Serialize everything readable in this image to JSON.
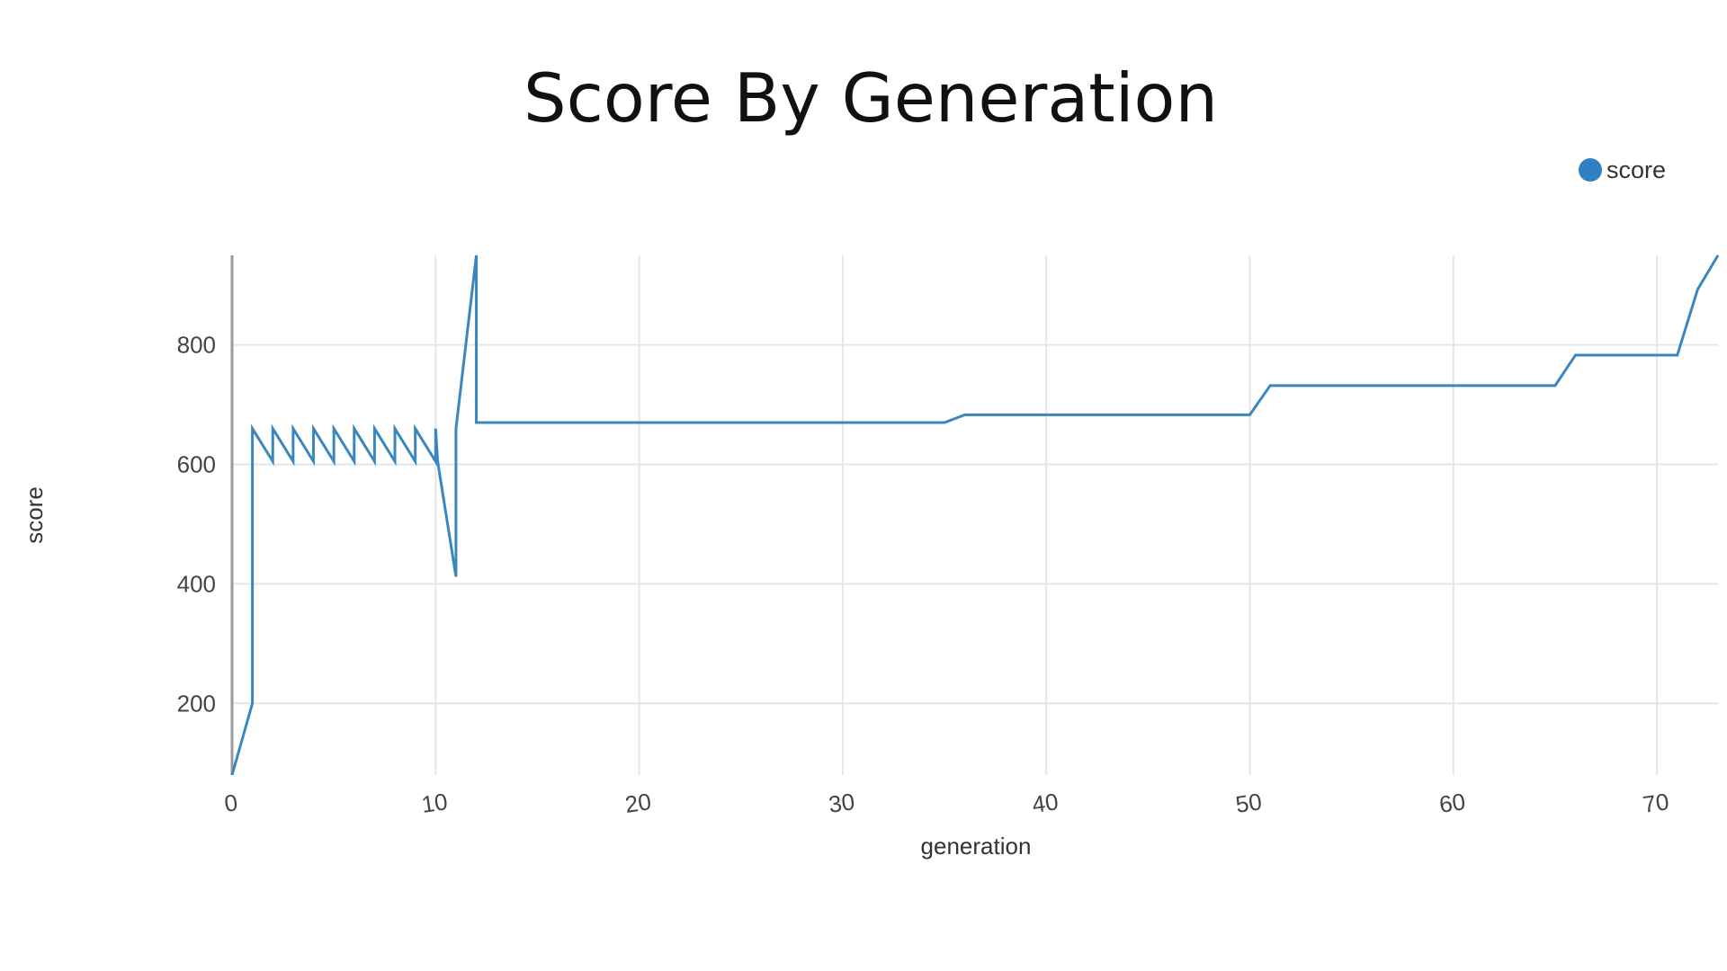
{
  "chart_data": {
    "type": "line",
    "title": "Score By Generation",
    "xlabel": "generation",
    "ylabel": "score",
    "xlim": [
      0,
      73
    ],
    "ylim": [
      80,
      950
    ],
    "xticks": [
      0,
      10,
      20,
      30,
      40,
      50,
      60,
      70
    ],
    "xtick_labels": [
      "0",
      "10",
      "20",
      "30",
      "40",
      "50",
      "60",
      "70"
    ],
    "yticks": [
      200,
      400,
      600,
      800
    ],
    "ytick_labels": [
      "200",
      "400",
      "600",
      "800"
    ],
    "grid": true,
    "legend_position": "top-right",
    "series": [
      {
        "name": "score",
        "color": "#3a87c0",
        "legend_color": "#2f7fc1",
        "x": [
          0,
          1,
          1,
          2,
          2,
          3,
          3,
          4,
          4,
          5,
          5,
          6,
          6,
          7,
          7,
          8,
          8,
          9,
          9,
          10,
          10,
          10.1,
          11,
          11,
          12,
          12,
          35,
          36,
          50,
          51,
          65,
          66,
          71,
          72,
          73
        ],
        "y": [
          80,
          200,
          660,
          605,
          660,
          605,
          660,
          605,
          660,
          605,
          660,
          605,
          660,
          605,
          660,
          605,
          660,
          605,
          660,
          605,
          660,
          605,
          412,
          660,
          950,
          670,
          670,
          683,
          683,
          732,
          732,
          783,
          783,
          893,
          950
        ]
      }
    ]
  }
}
